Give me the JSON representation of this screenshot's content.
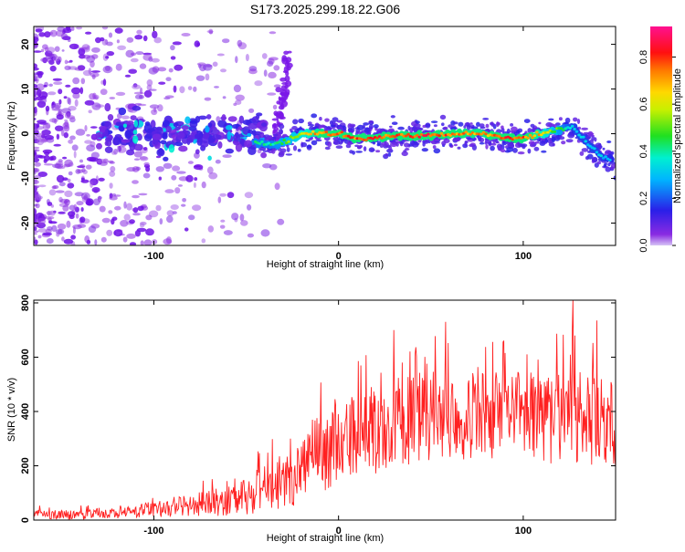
{
  "title": "S173.2025.299.18.22.G06",
  "colors": {
    "snr_line": "#ff2020",
    "ridge_core": "#e8281c",
    "ridge_halo": "#00d6c8",
    "scatter": "#7a12e8"
  },
  "chart_data": [
    {
      "type": "heatmap",
      "panel": "spectrogram",
      "xlabel": "Height of straight line (km)",
      "ylabel": "Frequency (Hz)",
      "xlim": [
        -165,
        150
      ],
      "ylim": [
        -25,
        24
      ],
      "xticks": [
        -100,
        0,
        100
      ],
      "yticks": [
        -20,
        -10,
        0,
        10,
        20
      ],
      "colorbar": {
        "label": "Normalized spectral amplitude",
        "ticks": [
          "0.0",
          "0.2",
          "0.4",
          "0.6",
          "0.8"
        ],
        "tick_values": [
          0.0,
          0.2,
          0.4,
          0.6,
          0.8
        ],
        "range": [
          0,
          0.93
        ],
        "colormap": "rainbow (violet → blue → cyan → green → yellow → red → magenta)"
      },
      "ridge_track": {
        "x": [
          -45,
          -35,
          -28,
          -20,
          -10,
          0,
          10,
          20,
          30,
          40,
          50,
          60,
          70,
          80,
          90,
          100,
          110,
          120,
          127,
          132,
          137,
          142,
          148
        ],
        "y": [
          -2.0,
          -2.5,
          -1.5,
          0.0,
          0.0,
          0.0,
          -1.0,
          -1.0,
          -0.5,
          -0.5,
          -0.5,
          0.0,
          0.0,
          0.0,
          -1.0,
          -1.0,
          0.0,
          1.0,
          1.5,
          -1.0,
          -3.0,
          -5.0,
          -6.0
        ],
        "amplitude": [
          0.45,
          0.45,
          0.55,
          0.7,
          0.8,
          0.9,
          0.85,
          0.9,
          0.85,
          0.9,
          0.9,
          0.85,
          0.8,
          0.8,
          0.9,
          0.85,
          0.75,
          0.5,
          0.35,
          0.35,
          0.35,
          0.35,
          0.3
        ]
      },
      "features": [
        {
          "description": "diffuse violet scatter across all frequencies",
          "x_range": [
            -165,
            -30
          ],
          "y_range": [
            -25,
            24
          ],
          "amplitude": 0.08
        },
        {
          "description": "violet band near 0 Hz with blue/cyan blobs",
          "x_range": [
            -130,
            -40
          ],
          "y_range": [
            -4,
            4
          ],
          "amplitude": 0.15
        },
        {
          "description": "rising violet tongue",
          "x": [
            -35,
            -30,
            -27
          ],
          "y": [
            0,
            8,
            17
          ],
          "amplitude": 0.1
        },
        {
          "description": "violet envelope around ridge",
          "x_range": [
            -40,
            150
          ],
          "y_range": [
            -4,
            4
          ],
          "amplitude": 0.1
        }
      ]
    },
    {
      "type": "line",
      "panel": "snr",
      "xlabel": "Height of straight line (km)",
      "ylabel": "SNR (10 * v/v)",
      "xlim": [
        -165,
        150
      ],
      "ylim": [
        0,
        810
      ],
      "xticks": [
        -100,
        0,
        100
      ],
      "yticks": [
        0,
        200,
        400,
        600,
        800
      ],
      "series": [
        {
          "x": [
            -165,
            -140,
            -120,
            -100,
            -80,
            -60,
            -50,
            -40,
            -35,
            -30,
            -25,
            -20,
            -15,
            -10,
            -5,
            0,
            10,
            20,
            30,
            40,
            50,
            60,
            70,
            80,
            90,
            100,
            110,
            120,
            130,
            140,
            150
          ],
          "y_mean": [
            20,
            20,
            25,
            40,
            55,
            70,
            85,
            110,
            130,
            150,
            170,
            190,
            220,
            240,
            265,
            280,
            300,
            330,
            360,
            375,
            380,
            385,
            385,
            380,
            380,
            385,
            380,
            375,
            370,
            360,
            350
          ],
          "y_spread": [
            18,
            18,
            20,
            30,
            40,
            55,
            70,
            90,
            100,
            110,
            120,
            130,
            140,
            145,
            150,
            155,
            160,
            165,
            170,
            170,
            170,
            165,
            165,
            160,
            160,
            165,
            170,
            175,
            180,
            175,
            170
          ],
          "notable_peaks": [
            {
              "x": 30,
              "y": 700
            },
            {
              "x": 58,
              "y": 730
            },
            {
              "x": 127,
              "y": 810
            },
            {
              "x": 140,
              "y": 735
            }
          ]
        }
      ]
    }
  ]
}
